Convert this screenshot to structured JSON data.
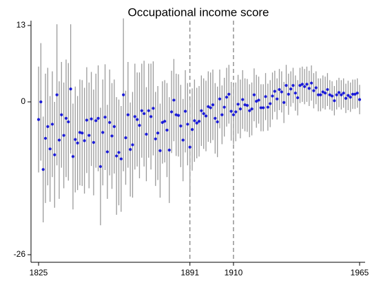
{
  "chart_data": {
    "type": "errorbar",
    "title": "Occupational income score",
    "x": [
      1825,
      1826,
      1827,
      1828,
      1829,
      1830,
      1831,
      1832,
      1833,
      1834,
      1835,
      1836,
      1837,
      1838,
      1839,
      1840,
      1841,
      1842,
      1843,
      1844,
      1845,
      1846,
      1847,
      1848,
      1849,
      1850,
      1851,
      1852,
      1853,
      1854,
      1855,
      1856,
      1857,
      1858,
      1859,
      1860,
      1861,
      1862,
      1863,
      1864,
      1865,
      1866,
      1867,
      1868,
      1869,
      1870,
      1871,
      1872,
      1873,
      1874,
      1875,
      1876,
      1877,
      1878,
      1879,
      1880,
      1881,
      1882,
      1883,
      1884,
      1885,
      1886,
      1887,
      1888,
      1889,
      1890,
      1891,
      1892,
      1893,
      1894,
      1895,
      1896,
      1897,
      1898,
      1899,
      1900,
      1901,
      1902,
      1903,
      1904,
      1905,
      1906,
      1907,
      1908,
      1909,
      1910,
      1911,
      1912,
      1913,
      1914,
      1915,
      1916,
      1917,
      1918,
      1919,
      1920,
      1921,
      1922,
      1923,
      1924,
      1925,
      1926,
      1927,
      1928,
      1929,
      1930,
      1931,
      1932,
      1933,
      1934,
      1935,
      1936,
      1937,
      1938,
      1939,
      1940,
      1941,
      1942,
      1943,
      1944,
      1945,
      1946,
      1947,
      1948,
      1949,
      1950,
      1951,
      1952,
      1953,
      1954,
      1955,
      1956,
      1957,
      1958,
      1959,
      1960,
      1961,
      1962,
      1963,
      1964,
      1965
    ],
    "values": [
      -3,
      0,
      -11.5,
      -6.2,
      -4.2,
      -8,
      -3.8,
      -9,
      1.2,
      -6.5,
      -2.2,
      -5.7,
      -2.8,
      -3.4,
      2.2,
      -9.3,
      -6.4,
      -7,
      -5.2,
      -5.3,
      -6.6,
      -3.1,
      -5.7,
      -2.9,
      -6.9,
      -3.2,
      -2.8,
      -11,
      -5.2,
      -2.6,
      -8.5,
      -3.5,
      -5.8,
      -4.2,
      -9.2,
      -8.6,
      -9.7,
      1.2,
      -6.1,
      -2.2,
      -8.1,
      -7.3,
      -2.5,
      -3,
      -4,
      -1.5,
      -2,
      -5.5,
      -1.5,
      -2.5,
      -1.1,
      -6.3,
      -5.3,
      -8.3,
      -3.5,
      -3.3,
      -4.8,
      -8.2,
      -1.7,
      0.3,
      -2.2,
      -2.3,
      -4.1,
      -6.5,
      -1.6,
      -3.8,
      -7.7,
      -4.7,
      -3.2,
      -3.6,
      -3.3,
      -1.5,
      -2,
      -2.4,
      -0.8,
      -1,
      -0.5,
      -2.8,
      -3.4,
      0.5,
      -2.2,
      -0.9,
      0.8,
      1.3,
      -1.6,
      -2.2,
      -1.7,
      -0.4,
      -1.2,
      0.4,
      -0.5,
      -0.6,
      -1.5,
      -1.2,
      1.2,
      0.1,
      0.3,
      -1,
      -1,
      0.9,
      -0.9,
      -0.3,
      1,
      1.8,
      0.5,
      2.1,
      1.7,
      -0.1,
      2.8,
      1.3,
      2.2,
      2.8,
      1.5,
      0.7,
      2.8,
      3,
      2.6,
      3,
      2.3,
      3.2,
      1.9,
      2.4,
      1.2,
      1.2,
      1.7,
      1.5,
      2.1,
      1.2,
      1,
      0.2,
      1.2,
      1.6,
      1.2,
      1.5,
      0.6,
      1.1,
      0.8,
      1.3,
      1.3,
      1.5,
      0.4
    ],
    "errors": [
      9,
      10,
      9,
      11,
      10,
      9,
      9,
      9,
      12,
      10,
      9,
      9,
      10,
      10,
      11,
      9,
      9,
      8,
      9,
      9,
      9,
      9,
      9,
      8,
      9,
      8,
      9,
      10,
      9,
      9,
      8,
      9,
      9,
      8,
      10,
      9,
      9,
      13,
      8,
      9,
      8,
      9,
      9,
      8,
      9,
      8,
      9,
      8,
      8,
      9,
      8,
      8,
      8,
      8,
      7,
      7,
      8,
      9,
      7,
      7,
      7,
      7,
      7,
      7,
      7,
      7,
      8,
      7,
      7,
      6,
      6,
      6,
      6,
      6,
      6,
      6,
      6,
      6,
      6,
      5,
      5,
      5,
      5,
      5,
      5,
      5,
      5,
      5,
      5,
      5,
      4.5,
      4.5,
      4.5,
      4.5,
      4.5,
      4.5,
      4,
      4,
      4,
      4,
      4,
      4,
      4,
      3.5,
      3.5,
      3.5,
      3.5,
      3.5,
      3.5,
      3.5,
      3,
      3,
      3,
      3,
      3,
      3,
      3,
      3,
      3,
      3,
      3,
      2.8,
      2.8,
      2.8,
      2.8,
      2.8,
      2.8,
      2.5,
      2.5,
      2.5,
      2.5,
      2.5,
      2.5,
      2.5,
      2.5,
      2.5,
      2.5,
      2.5,
      2.5,
      2.5,
      2.5
    ],
    "color": "#1a1ad6",
    "error_color": "#9a9a9a",
    "xlim": [
      1825,
      1965
    ],
    "xticks": [
      1825,
      1891,
      1910,
      1965
    ],
    "ylim": [
      -26,
      13
    ],
    "yticks": [
      13,
      0,
      -26
    ],
    "reference_lines": [
      1891,
      1910
    ]
  }
}
